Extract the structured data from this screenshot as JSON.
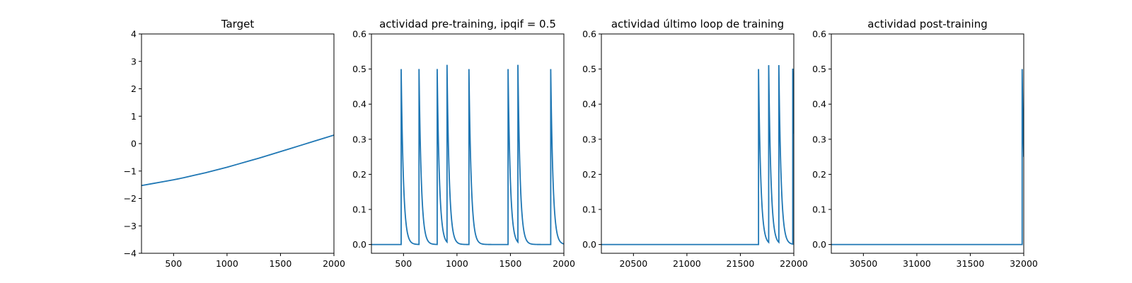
{
  "chart_data": [
    {
      "type": "line",
      "title": "Target",
      "xlim": [
        200,
        2000
      ],
      "ylim": [
        -4,
        4
      ],
      "xticks": [
        500,
        1000,
        1500,
        2000
      ],
      "yticks": [
        -4,
        -3,
        -2,
        -1,
        0,
        1,
        2,
        3,
        4
      ],
      "color": "#1f77b4",
      "series": [
        {
          "x": [
            200,
            300,
            400,
            500,
            600,
            700,
            800,
            900,
            1000,
            1100,
            1200,
            1300,
            1400,
            1500,
            1600,
            1700,
            1800,
            1900,
            2000
          ],
          "y": [
            -1.53,
            -1.46,
            -1.39,
            -1.32,
            -1.24,
            -1.15,
            -1.06,
            -0.96,
            -0.86,
            -0.75,
            -0.64,
            -0.53,
            -0.41,
            -0.29,
            -0.17,
            -0.05,
            0.07,
            0.19,
            0.31
          ]
        }
      ]
    },
    {
      "type": "line",
      "title": "actividad pre-training, ipqif = 0.5",
      "xlim": [
        200,
        2000
      ],
      "ylim": [
        -0.025,
        0.6
      ],
      "xticks": [
        500,
        1000,
        1500,
        2000
      ],
      "yticks": [
        0.0,
        0.1,
        0.2,
        0.3,
        0.4,
        0.5,
        0.6
      ],
      "color": "#1f77b4",
      "spike_times": [
        478,
        645,
        815,
        907,
        1112,
        1478,
        1570,
        1877
      ],
      "spike_peaks": [
        0.5,
        0.5,
        0.5,
        0.505,
        0.5,
        0.5,
        0.505,
        0.5
      ],
      "baseline": 0.0
    },
    {
      "type": "line",
      "title": "actividad último loop de training",
      "xlim": [
        20200,
        22000
      ],
      "ylim": [
        -0.025,
        0.6
      ],
      "xticks": [
        20500,
        21000,
        21500,
        22000
      ],
      "yticks": [
        0.0,
        0.1,
        0.2,
        0.3,
        0.4,
        0.5,
        0.6
      ],
      "color": "#1f77b4",
      "spike_times": [
        21670,
        21765,
        21860,
        21990
      ],
      "spike_peaks": [
        0.5,
        0.505,
        0.505,
        0.5
      ],
      "baseline": 0.0
    },
    {
      "type": "line",
      "title": "actividad post-training",
      "xlim": [
        30200,
        32000
      ],
      "ylim": [
        -0.025,
        0.6
      ],
      "xticks": [
        30500,
        31000,
        31500,
        32000
      ],
      "yticks": [
        0.0,
        0.1,
        0.2,
        0.3,
        0.4,
        0.5,
        0.6
      ],
      "color": "#1f77b4",
      "spike_times": [
        31985
      ],
      "spike_peaks": [
        0.5
      ],
      "baseline": 0.0
    }
  ]
}
